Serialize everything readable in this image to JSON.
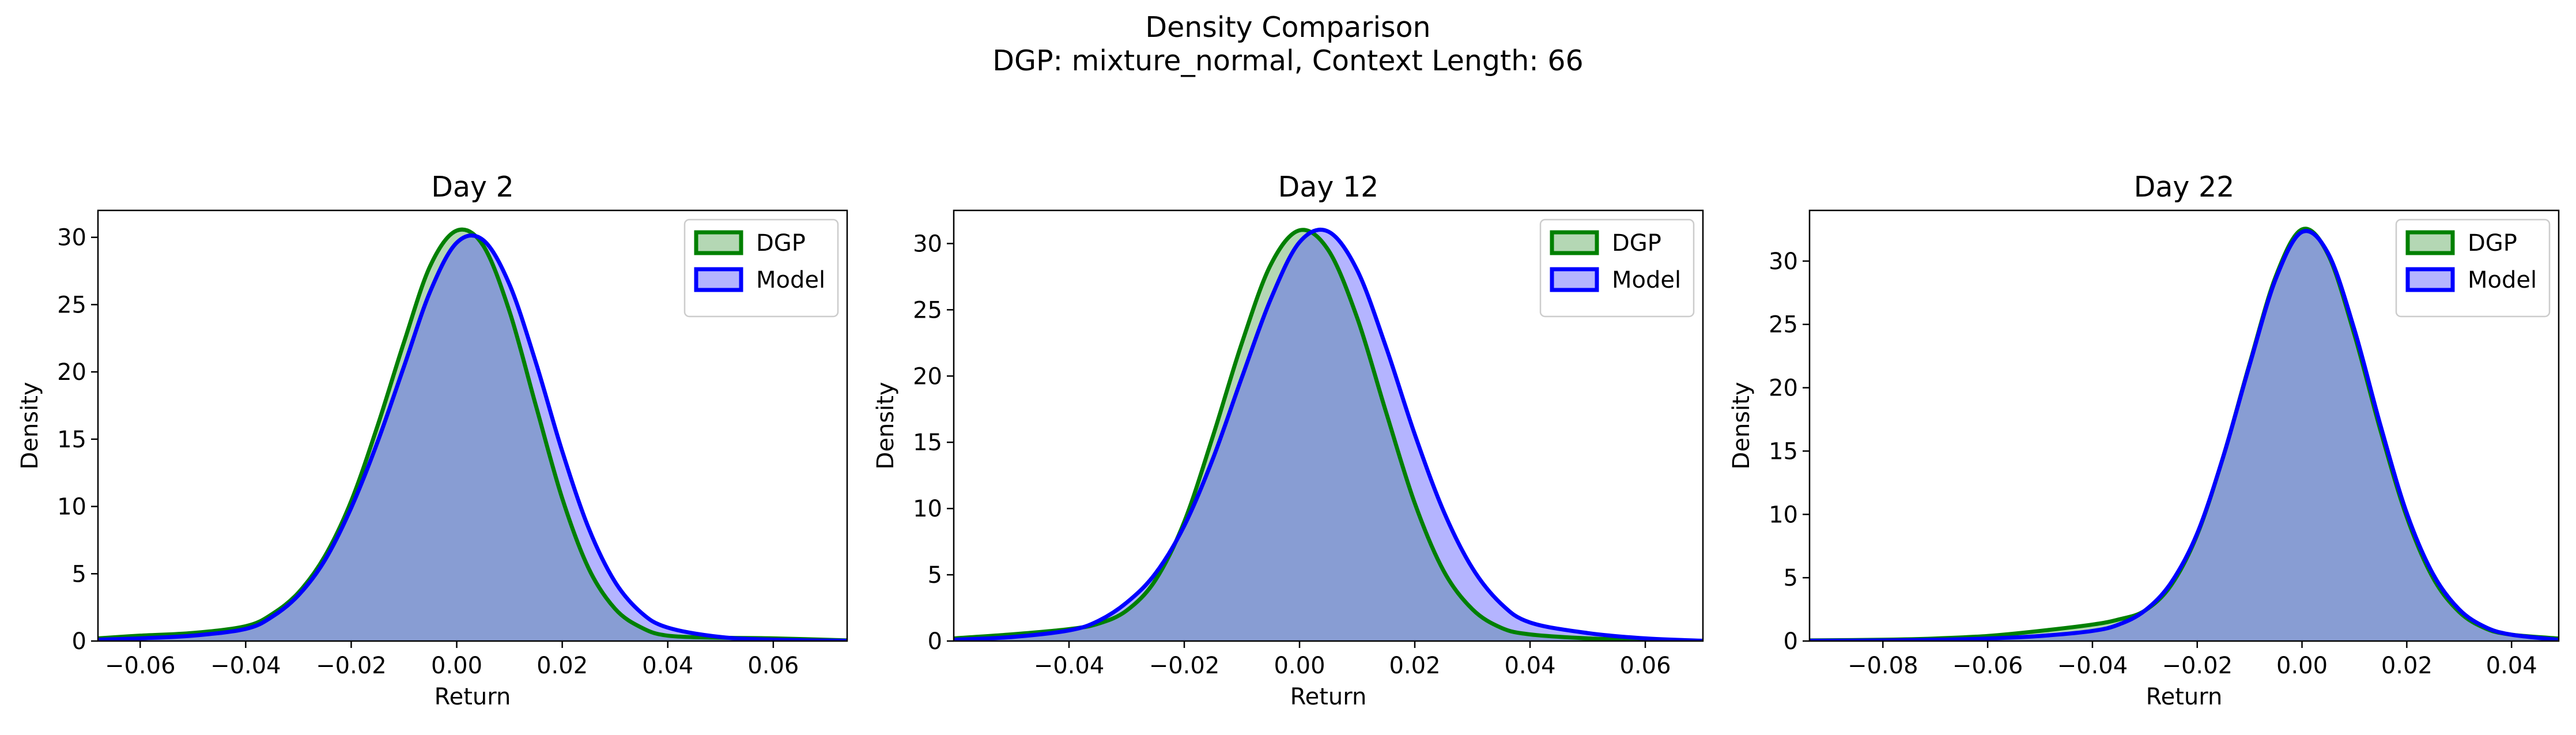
{
  "figure": {
    "title": "Density Comparison",
    "subtitle": "DGP: mixture_normal, Context Length: 66"
  },
  "colors": {
    "dgp": "#008000",
    "model": "#0000ff",
    "dgp_fill": "#4c9f4c",
    "model_fill": "#4c4cff",
    "overlap": "#7b98c8"
  },
  "chart_data": [
    {
      "type": "area",
      "title": "Day 2",
      "xlabel": "Return",
      "ylabel": "Density",
      "xlim": [
        -0.068,
        0.074
      ],
      "ylim": [
        0,
        32
      ],
      "xticks": [
        -0.06,
        -0.04,
        -0.02,
        0.0,
        0.02,
        0.04,
        0.06
      ],
      "xtick_labels": [
        "−0.06",
        "−0.04",
        "−0.02",
        "0.00",
        "0.02",
        "0.04",
        "0.06"
      ],
      "yticks": [
        0,
        5,
        10,
        15,
        20,
        25,
        30
      ],
      "ytick_labels": [
        "0",
        "5",
        "10",
        "15",
        "20",
        "25",
        "30"
      ],
      "legend_position": "top-right",
      "series": [
        {
          "name": "DGP",
          "x": [
            -0.068,
            -0.06,
            -0.05,
            -0.04,
            -0.035,
            -0.03,
            -0.025,
            -0.02,
            -0.015,
            -0.01,
            -0.005,
            0.0,
            0.005,
            0.01,
            0.015,
            0.02,
            0.025,
            0.03,
            0.035,
            0.04,
            0.05,
            0.06,
            0.074
          ],
          "y": [
            0.2,
            0.4,
            0.6,
            1.1,
            2.0,
            3.6,
            6.3,
            10.4,
            16.0,
            22.2,
            27.9,
            30.5,
            29.4,
            24.5,
            17.5,
            10.6,
            5.4,
            2.4,
            1.0,
            0.4,
            0.25,
            0.2,
            0.05
          ]
        },
        {
          "name": "Model",
          "x": [
            -0.068,
            -0.06,
            -0.05,
            -0.04,
            -0.035,
            -0.03,
            -0.025,
            -0.02,
            -0.015,
            -0.01,
            -0.005,
            0.0,
            0.005,
            0.01,
            0.015,
            0.02,
            0.025,
            0.03,
            0.035,
            0.04,
            0.05,
            0.06,
            0.074
          ],
          "y": [
            0.1,
            0.2,
            0.4,
            0.9,
            1.8,
            3.4,
            6.0,
            9.9,
            14.8,
            20.4,
            26.0,
            29.6,
            29.8,
            26.5,
            20.7,
            14.1,
            8.4,
            4.4,
            2.1,
            1.0,
            0.3,
            0.1,
            0.02
          ]
        }
      ]
    },
    {
      "type": "area",
      "title": "Day 12",
      "xlabel": "Return",
      "ylabel": "Density",
      "xlim": [
        -0.06,
        0.07
      ],
      "ylim": [
        0,
        32.5
      ],
      "xticks": [
        -0.04,
        -0.02,
        0.0,
        0.02,
        0.04,
        0.06
      ],
      "xtick_labels": [
        "−0.04",
        "−0.02",
        "0.00",
        "0.02",
        "0.04",
        "0.06"
      ],
      "yticks": [
        0,
        5,
        10,
        15,
        20,
        25,
        30
      ],
      "ytick_labels": [
        "0",
        "5",
        "10",
        "15",
        "20",
        "25",
        "30"
      ],
      "legend_position": "top-right",
      "series": [
        {
          "name": "DGP",
          "x": [
            -0.06,
            -0.05,
            -0.04,
            -0.035,
            -0.03,
            -0.025,
            -0.02,
            -0.015,
            -0.01,
            -0.005,
            0.0,
            0.005,
            0.01,
            0.015,
            0.02,
            0.025,
            0.03,
            0.035,
            0.04,
            0.05,
            0.06,
            0.07
          ],
          "y": [
            0.2,
            0.5,
            0.9,
            1.3,
            2.3,
            4.6,
            9.0,
            15.5,
            22.5,
            28.4,
            31.0,
            29.5,
            24.4,
            17.3,
            10.4,
            5.3,
            2.4,
            1.0,
            0.5,
            0.2,
            0.08,
            0.0
          ]
        },
        {
          "name": "Model",
          "x": [
            -0.06,
            -0.05,
            -0.04,
            -0.035,
            -0.03,
            -0.025,
            -0.02,
            -0.015,
            -0.01,
            -0.005,
            0.0,
            0.005,
            0.01,
            0.015,
            0.02,
            0.025,
            0.03,
            0.035,
            0.04,
            0.05,
            0.06,
            0.07
          ],
          "y": [
            0.1,
            0.3,
            0.8,
            1.5,
            2.9,
            5.1,
            8.7,
            13.8,
            19.9,
            25.8,
            30.1,
            30.9,
            28.0,
            22.2,
            15.6,
            9.8,
            5.5,
            2.8,
            1.4,
            0.6,
            0.2,
            0.02
          ]
        }
      ]
    },
    {
      "type": "area",
      "title": "Day 22",
      "xlabel": "Return",
      "ylabel": "Density",
      "xlim": [
        -0.094,
        0.049
      ],
      "ylim": [
        0,
        34
      ],
      "xticks": [
        -0.08,
        -0.06,
        -0.04,
        -0.02,
        0.0,
        0.02,
        0.04
      ],
      "xtick_labels": [
        "−0.08",
        "−0.06",
        "−0.04",
        "−0.02",
        "0.00",
        "0.02",
        "0.04"
      ],
      "yticks": [
        0,
        5,
        10,
        15,
        20,
        25,
        30
      ],
      "ytick_labels": [
        "0",
        "5",
        "10",
        "15",
        "20",
        "25",
        "30"
      ],
      "legend_position": "top-right",
      "series": [
        {
          "name": "DGP",
          "x": [
            -0.094,
            -0.08,
            -0.07,
            -0.06,
            -0.05,
            -0.04,
            -0.035,
            -0.03,
            -0.025,
            -0.02,
            -0.015,
            -0.01,
            -0.005,
            0.0,
            0.005,
            0.01,
            0.015,
            0.02,
            0.025,
            0.03,
            0.035,
            0.04,
            0.049
          ],
          "y": [
            0.05,
            0.1,
            0.2,
            0.4,
            0.8,
            1.3,
            1.7,
            2.4,
            4.4,
            8.4,
            14.6,
            21.9,
            28.8,
            32.5,
            30.5,
            24.2,
            16.6,
            9.8,
            5.0,
            2.3,
            1.0,
            0.5,
            0.2
          ]
        },
        {
          "name": "Model",
          "x": [
            -0.094,
            -0.08,
            -0.07,
            -0.06,
            -0.05,
            -0.04,
            -0.035,
            -0.03,
            -0.025,
            -0.02,
            -0.015,
            -0.01,
            -0.005,
            0.0,
            0.005,
            0.01,
            0.015,
            0.02,
            0.025,
            0.03,
            0.035,
            0.04,
            0.049
          ],
          "y": [
            0.02,
            0.05,
            0.1,
            0.2,
            0.4,
            0.8,
            1.3,
            2.4,
            4.6,
            8.5,
            14.6,
            21.8,
            28.6,
            32.3,
            30.6,
            24.6,
            17.0,
            10.1,
            5.3,
            2.5,
            1.1,
            0.5,
            0.1
          ]
        }
      ]
    }
  ]
}
